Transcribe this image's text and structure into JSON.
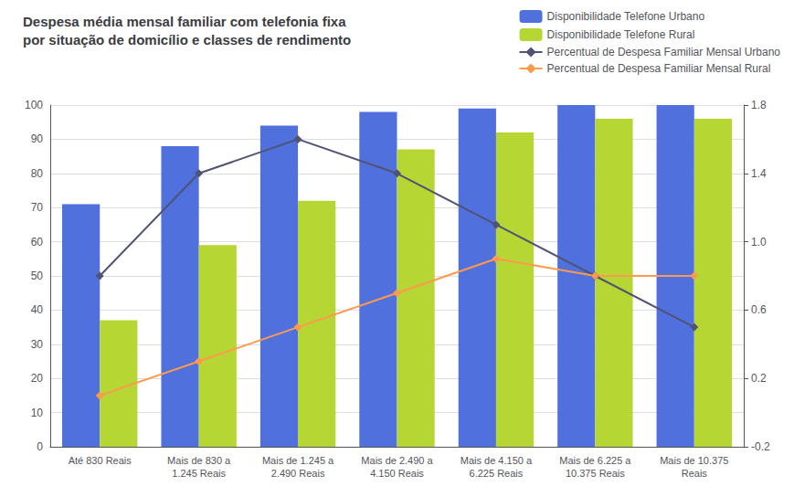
{
  "chart_data": {
    "type": "bar",
    "title": "Despesa média mensal familiar com telefonia fixa\npor situação de domicílio e classes de rendimento",
    "categories": [
      "Até 830 Reais",
      "Mais de 830 a\n1.245 Reais",
      "Mais de 1.245 a\n2.490 Reais",
      "Mais de 2.490 a\n4.150 Reais",
      "Mais de 4.150 a\n6.225 Reais",
      "Mais de 6.225 a\n10.375 Reais",
      "Mais de 10.375\nReais"
    ],
    "series": [
      {
        "name": "Disponibilidade Telefone Urbano",
        "type": "bar",
        "values": [
          71,
          88,
          94,
          98,
          99,
          100,
          100
        ]
      },
      {
        "name": "Disponibilidade Telefone Rural",
        "type": "bar",
        "values": [
          37,
          59,
          72,
          87,
          92,
          96,
          96
        ]
      },
      {
        "name": "Percentual de Despesa Familiar Mensal Urbano",
        "type": "line",
        "marker": "diamond",
        "values": [
          50,
          80,
          90,
          80,
          65,
          50,
          35
        ]
      },
      {
        "name": "Percentual de Despesa Familiar Mensal Rural",
        "type": "line",
        "marker": "diamond",
        "values": [
          15,
          25,
          35,
          45,
          55,
          50,
          50
        ]
      }
    ],
    "ylim": [
      0,
      100
    ],
    "yticks": [
      0,
      10,
      20,
      30,
      40,
      50,
      60,
      70,
      80,
      90,
      100
    ],
    "y2lim": [
      -0.2,
      1.8
    ],
    "y2ticks": [
      -0.2,
      0.2,
      0.6,
      {
        "value": 1.0,
        "label": "1.0"
      },
      1.4,
      1.8
    ],
    "grid": true,
    "legend": "upper right"
  }
}
